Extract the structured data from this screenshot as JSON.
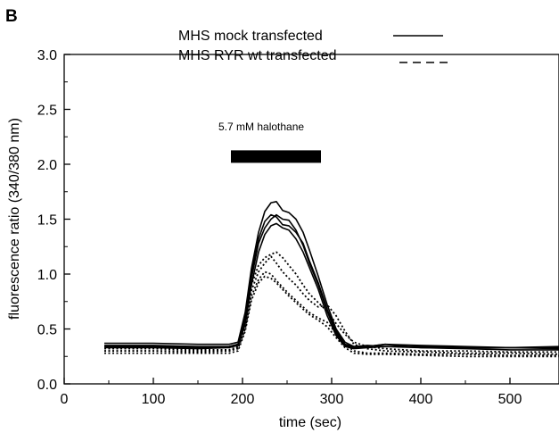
{
  "panel_label": "B",
  "chart_data": {
    "type": "line",
    "xlabel": "time (sec)",
    "ylabel": "fluorescence ratio (340/380 nm)",
    "xlim": [
      0,
      555
    ],
    "ylim": [
      0.0,
      3.0
    ],
    "xticks": [
      0,
      100,
      200,
      300,
      400,
      500
    ],
    "yticks": [
      0.0,
      0.5,
      1.0,
      1.5,
      2.0,
      2.5,
      3.0
    ],
    "xtick_labels": [
      "0",
      "100",
      "200",
      "300",
      "400",
      "500"
    ],
    "ytick_labels": [
      "0.0",
      "0.5",
      "1.0",
      "1.5",
      "2.0",
      "2.5",
      "3.0"
    ],
    "grid": false,
    "legend_position": "top-right",
    "legend": [
      {
        "label": "MHS mock transfected",
        "style": "solid"
      },
      {
        "label": "MHS RYR wt transfected",
        "style": "dashed"
      }
    ],
    "annotation": {
      "text": "5.7 mM halothane",
      "bar_start": 187,
      "bar_end": 288,
      "bar_level": 2.07
    },
    "series": [
      {
        "style": "solid",
        "x": [
          45,
          100,
          150,
          185,
          195,
          203,
          210,
          218,
          225,
          232,
          238,
          245,
          252,
          260,
          268,
          275,
          285,
          295,
          305,
          315,
          325,
          340,
          360,
          400,
          450,
          500,
          555
        ],
        "y": [
          0.37,
          0.37,
          0.36,
          0.36,
          0.38,
          0.65,
          1.05,
          1.38,
          1.57,
          1.65,
          1.66,
          1.58,
          1.56,
          1.5,
          1.38,
          1.22,
          0.98,
          0.72,
          0.5,
          0.38,
          0.34,
          0.34,
          0.36,
          0.33,
          0.33,
          0.33,
          0.33
        ]
      },
      {
        "style": "solid",
        "x": [
          45,
          100,
          150,
          185,
          195,
          203,
          210,
          218,
          225,
          232,
          238,
          245,
          252,
          260,
          268,
          275,
          285,
          295,
          305,
          315,
          325,
          340,
          360,
          400,
          450,
          500,
          555
        ],
        "y": [
          0.35,
          0.35,
          0.34,
          0.34,
          0.36,
          0.6,
          1.0,
          1.32,
          1.48,
          1.54,
          1.52,
          1.45,
          1.44,
          1.38,
          1.28,
          1.12,
          0.92,
          0.68,
          0.48,
          0.36,
          0.34,
          0.35,
          0.34,
          0.34,
          0.33,
          0.33,
          0.32
        ]
      },
      {
        "style": "solid",
        "x": [
          45,
          100,
          150,
          185,
          195,
          203,
          210,
          218,
          225,
          232,
          238,
          245,
          252,
          260,
          268,
          275,
          285,
          295,
          305,
          315,
          325,
          340,
          360,
          400,
          450,
          500,
          555
        ],
        "y": [
          0.34,
          0.34,
          0.33,
          0.34,
          0.36,
          0.58,
          0.96,
          1.28,
          1.42,
          1.5,
          1.54,
          1.5,
          1.49,
          1.4,
          1.26,
          1.1,
          0.9,
          0.66,
          0.46,
          0.35,
          0.33,
          0.34,
          0.36,
          0.35,
          0.34,
          0.33,
          0.34
        ]
      },
      {
        "style": "solid",
        "x": [
          45,
          100,
          150,
          185,
          195,
          203,
          210,
          218,
          225,
          232,
          238,
          245,
          252,
          260,
          268,
          275,
          285,
          295,
          305,
          315,
          325,
          340,
          360,
          400,
          450,
          500,
          555
        ],
        "y": [
          0.33,
          0.33,
          0.32,
          0.33,
          0.35,
          0.55,
          0.9,
          1.2,
          1.36,
          1.44,
          1.46,
          1.42,
          1.4,
          1.32,
          1.2,
          1.06,
          0.86,
          0.62,
          0.44,
          0.34,
          0.32,
          0.33,
          0.34,
          0.33,
          0.32,
          0.31,
          0.31
        ]
      },
      {
        "style": "dashed",
        "x": [
          45,
          100,
          150,
          185,
          195,
          203,
          210,
          218,
          225,
          232,
          238,
          245,
          252,
          260,
          268,
          275,
          285,
          295,
          305,
          315,
          325,
          340,
          360,
          400,
          450,
          500,
          555
        ],
        "y": [
          0.32,
          0.32,
          0.31,
          0.31,
          0.34,
          0.55,
          0.9,
          1.08,
          1.15,
          1.18,
          1.2,
          1.15,
          1.08,
          1.0,
          0.9,
          0.82,
          0.74,
          0.66,
          0.55,
          0.45,
          0.38,
          0.34,
          0.32,
          0.3,
          0.3,
          0.29,
          0.29
        ]
      },
      {
        "style": "dashed",
        "x": [
          45,
          100,
          150,
          185,
          195,
          203,
          210,
          218,
          225,
          232,
          238,
          245,
          252,
          260,
          268,
          275,
          285,
          295,
          305,
          315,
          325,
          340,
          360,
          400,
          450,
          500,
          555
        ],
        "y": [
          0.3,
          0.3,
          0.3,
          0.3,
          0.33,
          0.52,
          0.85,
          1.02,
          1.1,
          1.16,
          1.1,
          1.02,
          0.96,
          0.9,
          0.82,
          0.76,
          0.7,
          0.72,
          0.62,
          0.48,
          0.36,
          0.32,
          0.3,
          0.29,
          0.28,
          0.28,
          0.27
        ]
      },
      {
        "style": "dashed",
        "x": [
          45,
          100,
          150,
          185,
          195,
          203,
          210,
          218,
          225,
          232,
          238,
          245,
          252,
          260,
          268,
          275,
          285,
          295,
          305,
          315,
          325,
          340,
          360,
          400,
          450,
          500,
          555
        ],
        "y": [
          0.3,
          0.3,
          0.29,
          0.3,
          0.32,
          0.5,
          0.8,
          0.95,
          1.02,
          1.0,
          0.94,
          0.88,
          0.82,
          0.76,
          0.7,
          0.65,
          0.6,
          0.56,
          0.46,
          0.36,
          0.3,
          0.28,
          0.28,
          0.27,
          0.27,
          0.26,
          0.26
        ]
      },
      {
        "style": "dashed",
        "x": [
          45,
          100,
          150,
          185,
          195,
          203,
          210,
          218,
          225,
          232,
          238,
          245,
          252,
          260,
          268,
          275,
          285,
          295,
          305,
          315,
          325,
          340,
          360,
          400,
          450,
          500,
          555
        ],
        "y": [
          0.28,
          0.28,
          0.28,
          0.28,
          0.3,
          0.48,
          0.76,
          0.92,
          0.98,
          0.96,
          0.92,
          0.86,
          0.8,
          0.74,
          0.68,
          0.63,
          0.58,
          0.52,
          0.42,
          0.33,
          0.28,
          0.27,
          0.27,
          0.26,
          0.25,
          0.25,
          0.25
        ]
      }
    ]
  }
}
